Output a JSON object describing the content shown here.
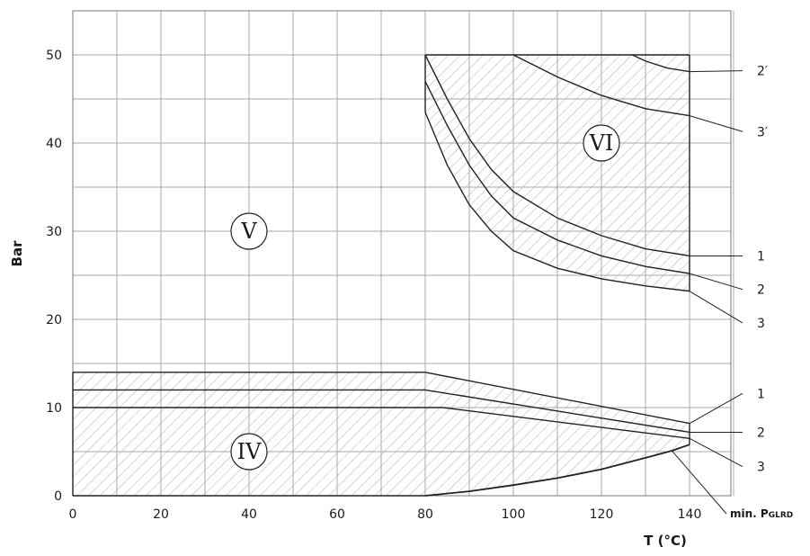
{
  "chart_data": {
    "type": "area",
    "xlabel": "T (°C)",
    "ylabel": "Bar",
    "xlim": [
      0,
      140
    ],
    "ylim": [
      0,
      50
    ],
    "x_ticks": [
      0,
      20,
      40,
      60,
      80,
      100,
      120,
      140
    ],
    "y_ticks": [
      0,
      10,
      20,
      30,
      40,
      50
    ],
    "grid": true,
    "grid_step_x": 10,
    "grid_step_y": 5,
    "regions": [
      {
        "label": "IV",
        "x": 40,
        "y": 5
      },
      {
        "label": "V",
        "x": 40,
        "y": 30
      },
      {
        "label": "VI",
        "x": 120,
        "y": 40
      }
    ],
    "series": [
      {
        "name": "1",
        "points": [
          [
            0,
            14
          ],
          [
            80,
            14
          ],
          [
            140,
            8.2
          ]
        ]
      },
      {
        "name": "2",
        "points": [
          [
            0,
            12
          ],
          [
            80,
            12
          ],
          [
            140,
            7.2
          ]
        ]
      },
      {
        "name": "3",
        "points": [
          [
            0,
            10
          ],
          [
            84,
            10
          ],
          [
            140,
            6.5
          ]
        ]
      },
      {
        "name": "min. PGLRD",
        "points": [
          [
            80,
            0
          ],
          [
            90,
            0.5
          ],
          [
            100,
            1.2
          ],
          [
            110,
            2
          ],
          [
            120,
            3
          ],
          [
            130,
            4.3
          ],
          [
            136,
            5.1
          ],
          [
            140,
            5.8
          ]
        ]
      },
      {
        "name": "1",
        "points": [
          [
            80,
            50
          ],
          [
            85,
            45
          ],
          [
            90,
            40.5
          ],
          [
            95,
            37
          ],
          [
            100,
            34.5
          ],
          [
            110,
            31.5
          ],
          [
            120,
            29.5
          ],
          [
            130,
            28
          ],
          [
            140,
            27.2
          ]
        ]
      },
      {
        "name": "2",
        "points": [
          [
            80,
            47
          ],
          [
            85,
            42
          ],
          [
            90,
            37.5
          ],
          [
            95,
            34
          ],
          [
            100,
            31.5
          ],
          [
            110,
            29
          ],
          [
            120,
            27.2
          ],
          [
            130,
            26
          ],
          [
            140,
            25.2
          ]
        ]
      },
      {
        "name": "3",
        "points": [
          [
            80,
            43.5
          ],
          [
            85,
            37.5
          ],
          [
            90,
            33
          ],
          [
            95,
            30
          ],
          [
            100,
            27.8
          ],
          [
            110,
            25.8
          ],
          [
            120,
            24.6
          ],
          [
            130,
            23.8
          ],
          [
            140,
            23.2
          ]
        ]
      },
      {
        "name": "2′",
        "points": [
          [
            127,
            50
          ],
          [
            130,
            49.3
          ],
          [
            135,
            48.5
          ],
          [
            140,
            48.1
          ]
        ]
      },
      {
        "name": "3′",
        "points": [
          [
            100,
            50
          ],
          [
            110,
            47.5
          ],
          [
            120,
            45.4
          ],
          [
            130,
            43.9
          ],
          [
            140,
            43.1
          ]
        ]
      }
    ],
    "callouts": [
      {
        "label": "2′",
        "series": 7,
        "at_x": 140,
        "text_y": 48.2
      },
      {
        "label": "3′",
        "series": 8,
        "at_x": 140,
        "text_y": 41.3
      },
      {
        "label": "1",
        "series": 4,
        "at_x": 140,
        "text_y": 27.2
      },
      {
        "label": "2",
        "series": 5,
        "at_x": 140,
        "text_y": 23.4
      },
      {
        "label": "3",
        "series": 6,
        "at_x": 140,
        "text_y": 19.6
      },
      {
        "label": "1",
        "series": 0,
        "at_x": 140,
        "text_y": 11.6
      },
      {
        "label": "2",
        "series": 1,
        "at_x": 140,
        "text_y": 7.2
      },
      {
        "label": "3",
        "series": 2,
        "at_x": 140,
        "text_y": 3.3
      },
      {
        "label": "min. PGLRD",
        "series": 3,
        "at_x": 136,
        "text_y": -1.8
      }
    ]
  }
}
